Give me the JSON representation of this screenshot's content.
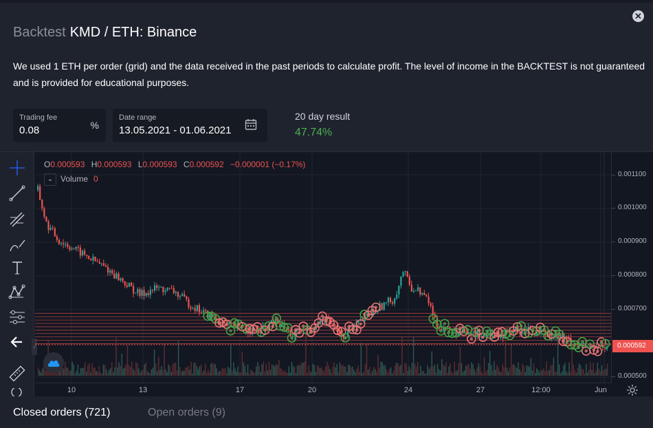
{
  "header": {
    "title_muted": "Backtest",
    "title_main": "KMD / ETH: Binance",
    "description": "We used 1 ETH per order (grid) and the data received in the past periods to calculate profit. The level of income in the BACKTEST is not guaranteed and is provided for educational purposes."
  },
  "form": {
    "trading_fee": {
      "label": "Trading fee",
      "value": "0.08",
      "suffix": "%"
    },
    "date_range": {
      "label": "Date range",
      "value": "13.05.2021 - 01.06.2021"
    }
  },
  "result": {
    "label": "20 day result",
    "value": "47.74%"
  },
  "legend": {
    "o_key": "O",
    "o_val": "0.000593",
    "h_key": "H",
    "h_val": "0.000593",
    "l_key": "L",
    "l_val": "0.000593",
    "c_key": "C",
    "c_val": "0.000592",
    "change": "−0.000001 (−0.17%)",
    "volume_label": "Volume",
    "volume_value": "0"
  },
  "chart_data": {
    "type": "candlestick",
    "price_ticks": [
      "0.001100",
      "0.001000",
      "0.000900",
      "0.000800",
      "0.000700",
      "0.000500"
    ],
    "current_price": "0.000592",
    "time_ticks": [
      "10",
      "13",
      "17",
      "20",
      "24",
      "27",
      "12:00",
      "Jun"
    ],
    "ylim": [
      0.0005,
      0.00111
    ],
    "grid_levels": [
      0.000685,
      0.000675,
      0.000665,
      0.000655,
      0.000645,
      0.000635,
      0.000625,
      0.000615,
      0.000605,
      0.000595
    ],
    "price_path": [
      [
        0,
        0.00105
      ],
      [
        2,
        0.00095
      ],
      [
        5,
        0.0009
      ],
      [
        8,
        0.00088
      ],
      [
        12,
        0.00085
      ],
      [
        16,
        0.00082
      ],
      [
        20,
        0.00078
      ],
      [
        24,
        0.00074
      ],
      [
        28,
        0.00076
      ],
      [
        32,
        0.00075
      ],
      [
        36,
        0.00071
      ],
      [
        40,
        0.00068
      ],
      [
        44,
        0.00065
      ],
      [
        48,
        0.00064
      ],
      [
        52,
        0.00063
      ],
      [
        56,
        0.00066
      ],
      [
        60,
        0.00062
      ],
      [
        64,
        0.00064
      ],
      [
        68,
        0.00067
      ],
      [
        72,
        0.00062
      ],
      [
        76,
        0.00066
      ],
      [
        80,
        0.0007
      ],
      [
        84,
        0.00073
      ],
      [
        86,
        0.00081
      ],
      [
        88,
        0.00076
      ],
      [
        90,
        0.00075
      ],
      [
        92,
        0.00072
      ],
      [
        94,
        0.00065
      ],
      [
        98,
        0.00063
      ],
      [
        102,
        0.00062
      ],
      [
        106,
        0.00063
      ],
      [
        110,
        0.00062
      ],
      [
        114,
        0.00064
      ],
      [
        118,
        0.00063
      ],
      [
        122,
        0.00062
      ],
      [
        126,
        0.0006
      ],
      [
        130,
        0.00058
      ],
      [
        134,
        0.00059
      ]
    ],
    "colors": {
      "up": "#26a69a",
      "down": "#ef5350",
      "buy": "#43a047",
      "sell": "#e57373"
    }
  },
  "tabs": {
    "closed": "Closed orders (721)",
    "open": "Open orders (9)"
  }
}
